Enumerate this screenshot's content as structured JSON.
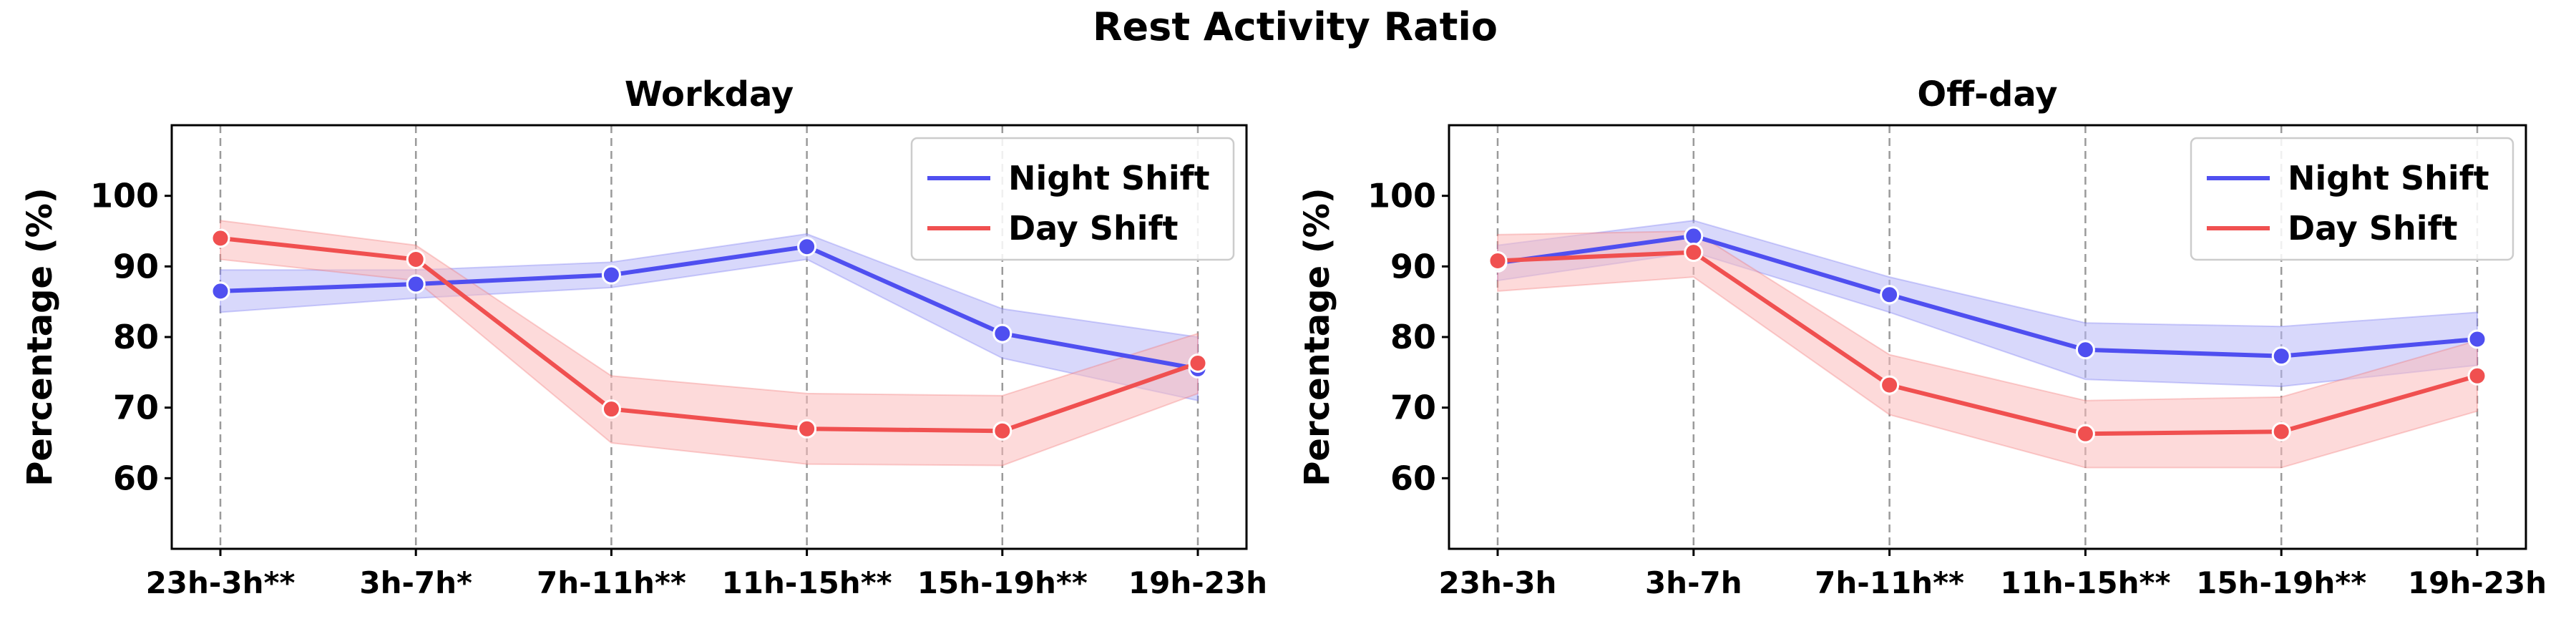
{
  "figure_title": "Rest Activity Ratio",
  "colors": {
    "night": "#4f4ff0",
    "day": "#f05050",
    "night_band": "#b8b8f8",
    "day_band": "#fcbcbc"
  },
  "chart_data": [
    {
      "type": "line",
      "title": "Workday",
      "ylabel": "Percentage (%)",
      "xlabel": "",
      "ylim": [
        50,
        110
      ],
      "yticks": [
        60,
        70,
        80,
        90,
        100
      ],
      "grid": "vertical dashed",
      "legend_placement": "top-right",
      "categories": [
        "23h-3h**",
        "3h-7h*",
        "7h-11h**",
        "11h-15h**",
        "15h-19h**",
        "19h-23h"
      ],
      "series": [
        {
          "name": "Night Shift",
          "values": [
            86.5,
            87.5,
            88.8,
            92.8,
            80.5,
            75.5
          ],
          "lower": [
            83.5,
            85.5,
            87.0,
            91.0,
            77.0,
            71.0
          ],
          "upper": [
            89.5,
            89.5,
            90.6,
            94.6,
            84.0,
            80.0
          ]
        },
        {
          "name": "Day Shift",
          "values": [
            94.0,
            91.0,
            69.8,
            67.0,
            66.7,
            76.3
          ],
          "lower": [
            91.0,
            88.0,
            65.0,
            62.0,
            61.8,
            72.0
          ],
          "upper": [
            96.5,
            93.0,
            74.5,
            72.0,
            71.7,
            80.5
          ]
        }
      ]
    },
    {
      "type": "line",
      "title": "Off-day",
      "ylabel": "Percentage (%)",
      "xlabel": "",
      "ylim": [
        50,
        110
      ],
      "yticks": [
        60,
        70,
        80,
        90,
        100
      ],
      "grid": "vertical dashed",
      "legend_placement": "top-right",
      "categories": [
        "23h-3h",
        "3h-7h",
        "7h-11h**",
        "11h-15h**",
        "15h-19h**",
        "19h-23h"
      ],
      "series": [
        {
          "name": "Night Shift",
          "values": [
            90.5,
            94.3,
            86.0,
            78.2,
            77.3,
            79.7
          ],
          "lower": [
            88.0,
            92.0,
            83.5,
            74.0,
            73.0,
            76.0
          ],
          "upper": [
            93.0,
            96.5,
            88.5,
            82.0,
            81.5,
            83.5
          ]
        },
        {
          "name": "Day Shift",
          "values": [
            90.8,
            92.0,
            73.2,
            66.3,
            66.6,
            74.5
          ],
          "lower": [
            86.5,
            88.5,
            69.0,
            61.5,
            61.5,
            69.5
          ],
          "upper": [
            94.5,
            95.0,
            77.5,
            71.0,
            71.5,
            79.5
          ]
        }
      ]
    }
  ]
}
